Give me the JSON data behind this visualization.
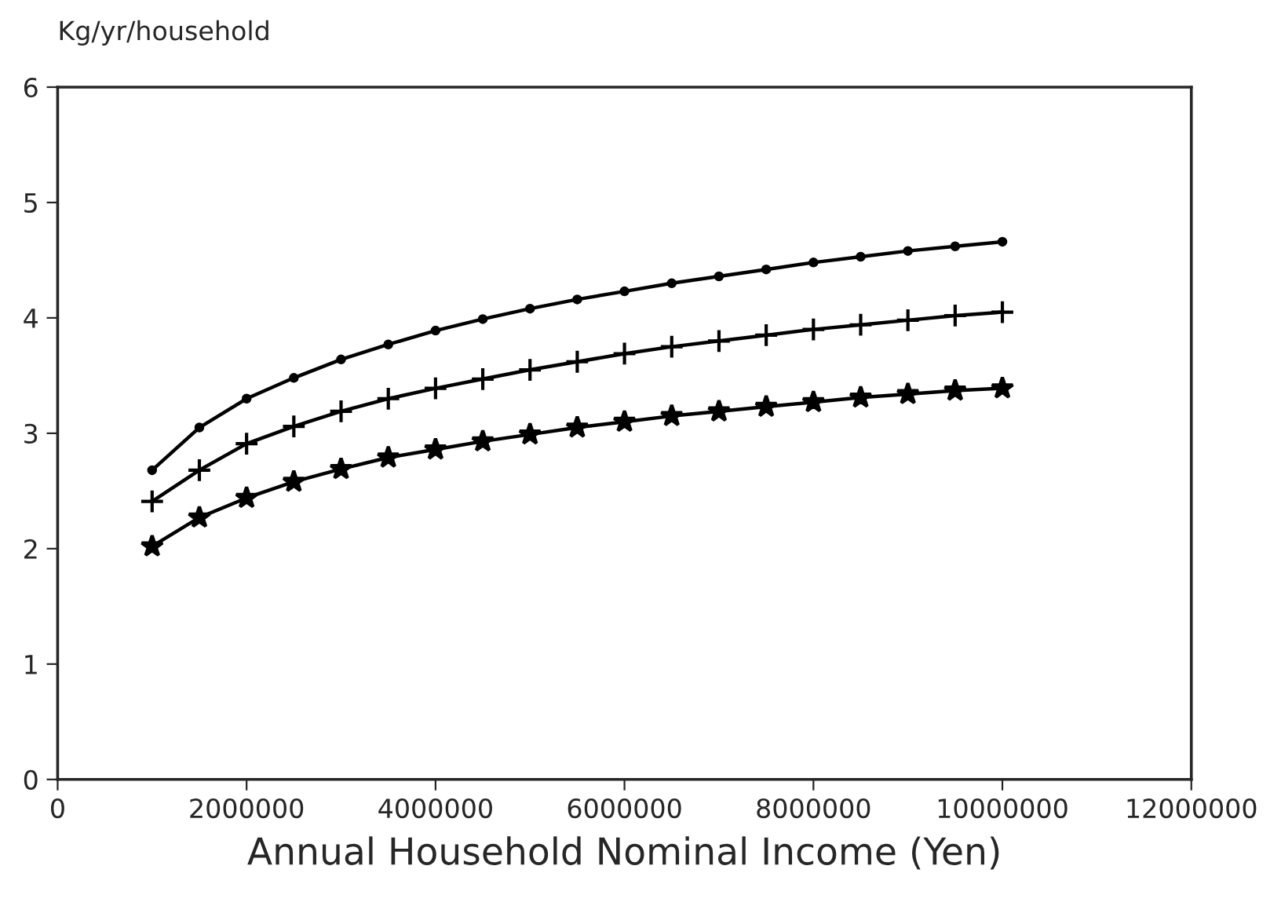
{
  "chart_data": {
    "type": "line",
    "xlabel": "Annual Household Nominal Income (Yen)",
    "ylabel": "Kg/yr/household",
    "x": [
      1000000,
      1500000,
      2000000,
      2500000,
      3000000,
      3500000,
      4000000,
      4500000,
      5000000,
      5500000,
      6000000,
      6500000,
      7000000,
      7500000,
      8000000,
      8500000,
      9000000,
      9500000,
      10000000
    ],
    "series": [
      {
        "color": "#000000",
        "marker": "circle",
        "values": [
          2.68,
          3.05,
          3.3,
          3.48,
          3.64,
          3.77,
          3.89,
          3.99,
          4.08,
          4.16,
          4.23,
          4.3,
          4.36,
          4.42,
          4.48,
          4.53,
          4.58,
          4.62,
          4.66
        ]
      },
      {
        "color": "#000000",
        "marker": "cross",
        "values": [
          2.41,
          2.68,
          2.91,
          3.06,
          3.19,
          3.3,
          3.39,
          3.47,
          3.55,
          3.62,
          3.69,
          3.75,
          3.8,
          3.85,
          3.9,
          3.94,
          3.98,
          4.02,
          4.05
        ]
      },
      {
        "color": "#000000",
        "marker": "star",
        "values": [
          2.02,
          2.27,
          2.44,
          2.58,
          2.69,
          2.79,
          2.86,
          2.93,
          2.99,
          3.05,
          3.1,
          3.15,
          3.19,
          3.23,
          3.27,
          3.31,
          3.34,
          3.37,
          3.39
        ]
      }
    ],
    "xlim": [
      0,
      12000000
    ],
    "xticks": [
      0,
      2000000,
      4000000,
      6000000,
      8000000,
      10000000,
      12000000
    ],
    "ylim": [
      0,
      6
    ],
    "yticks": [
      0,
      1,
      2,
      3,
      4,
      5,
      6
    ],
    "grid": false,
    "legend": false,
    "line_style": "solid"
  }
}
